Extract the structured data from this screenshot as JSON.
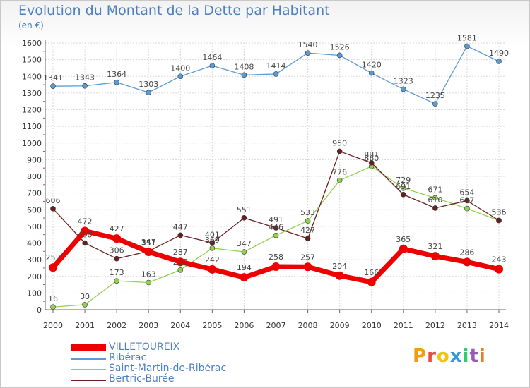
{
  "chart_data": {
    "type": "line",
    "title": "Evolution du Montant de la Dette par Habitant",
    "unit": "(en €)",
    "x": [
      "2000",
      "2001",
      "2002",
      "2003",
      "2004",
      "2005",
      "2006",
      "2007",
      "2008",
      "2009",
      "2010",
      "2011",
      "2012",
      "2013",
      "2014"
    ],
    "ylim": [
      0,
      1600
    ],
    "yticks": [
      0,
      100,
      200,
      300,
      400,
      500,
      600,
      700,
      800,
      900,
      1000,
      1100,
      1200,
      1300,
      1400,
      1500,
      1600
    ],
    "grid": true,
    "legend_position": "bottom-left",
    "series": [
      {
        "name": "VILLETOUREIX",
        "color": "#ee0000",
        "values": [
          253,
          472,
          427,
          347,
          287,
          242,
          194,
          258,
          257,
          204,
          166,
          365,
          321,
          286,
          243
        ]
      },
      {
        "name": "Ribérac",
        "color": "#5b9bd5",
        "values": [
          1341,
          1343,
          1364,
          1303,
          1400,
          1464,
          1408,
          1414,
          1540,
          1526,
          1420,
          1323,
          1235,
          1581,
          1490
        ]
      },
      {
        "name": "Saint-Martin-de-Ribérac",
        "color": "#92d050",
        "values": [
          16,
          30,
          173,
          163,
          238,
          369,
          347,
          446,
          533,
          776,
          860,
          729,
          671,
          607,
          535
        ]
      },
      {
        "name": "Bertric-Burée",
        "color": "#6b2020",
        "values": [
          606,
          400,
          306,
          351,
          447,
          401,
          551,
          491,
          427,
          950,
          881,
          691,
          610,
          654,
          536
        ]
      }
    ]
  },
  "logo": {
    "text": "Proxiti",
    "letters": [
      {
        "ch": "P",
        "color": "#f39c12"
      },
      {
        "ch": "r",
        "color": "#e74c3c"
      },
      {
        "ch": "o",
        "color": "#f1c40f"
      },
      {
        "ch": "x",
        "color": "#3498db"
      },
      {
        "ch": "i",
        "color": "#2ecc71"
      },
      {
        "ch": "t",
        "color": "#9b59b6"
      },
      {
        "ch": "i",
        "color": "#e67e22"
      }
    ]
  }
}
